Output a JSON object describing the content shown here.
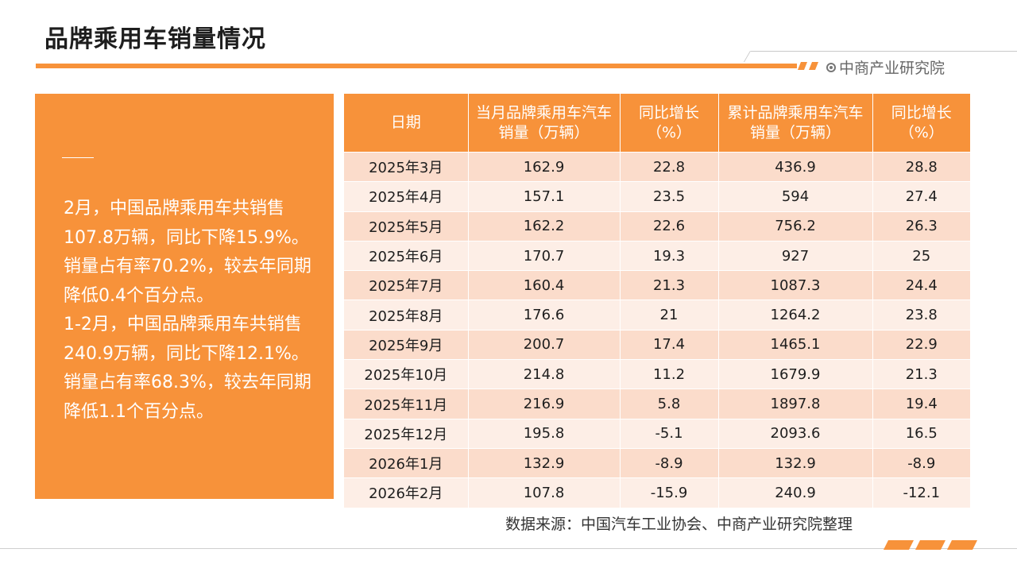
{
  "header": {
    "title": "品牌乘用车销量情况",
    "brand": "中商产业研究院",
    "accent_color": "#f7923a"
  },
  "summary": {
    "paragraph1": "2月，中国品牌乘用车共销售107.8万辆，同比下降15.9%。销量占有率70.2%，较去年同期降低0.4个百分点。",
    "paragraph2": "1-2月，中国品牌乘用车共销售240.9万辆，同比下降12.1%。销量占有率68.3%，较去年同期降低1.1个百分点。"
  },
  "table": {
    "columns": [
      "日期",
      "当月品牌乘用车汽车销量（万辆）",
      "同比增长（%）",
      "累计品牌乘用车汽车销量（万辆）",
      "同比增长（%）"
    ],
    "rows": [
      [
        "2025年3月",
        "162.9",
        "22.8",
        "436.9",
        "28.8"
      ],
      [
        "2025年4月",
        "157.1",
        "23.5",
        "594",
        "27.4"
      ],
      [
        "2025年5月",
        "162.2",
        "22.6",
        "756.2",
        "26.3"
      ],
      [
        "2025年6月",
        "170.7",
        "19.3",
        "927",
        "25"
      ],
      [
        "2025年7月",
        "160.4",
        "21.3",
        "1087.3",
        "24.4"
      ],
      [
        "2025年8月",
        "176.6",
        "21",
        "1264.2",
        "23.8"
      ],
      [
        "2025年9月",
        "200.7",
        "17.4",
        "1465.1",
        "22.9"
      ],
      [
        "2025年10月",
        "214.8",
        "11.2",
        "1679.9",
        "21.3"
      ],
      [
        "2025年11月",
        "216.9",
        "5.8",
        "1897.8",
        "19.4"
      ],
      [
        "2025年12月",
        "195.8",
        "-5.1",
        "2093.6",
        "16.5"
      ],
      [
        "2026年1月",
        "132.9",
        "-8.9",
        "132.9",
        "-8.9"
      ],
      [
        "2026年2月",
        "107.8",
        "-15.9",
        "240.9",
        "-12.1"
      ]
    ]
  },
  "footer": {
    "source": "数据来源：中国汽车工业协会、中商产业研究院整理"
  }
}
